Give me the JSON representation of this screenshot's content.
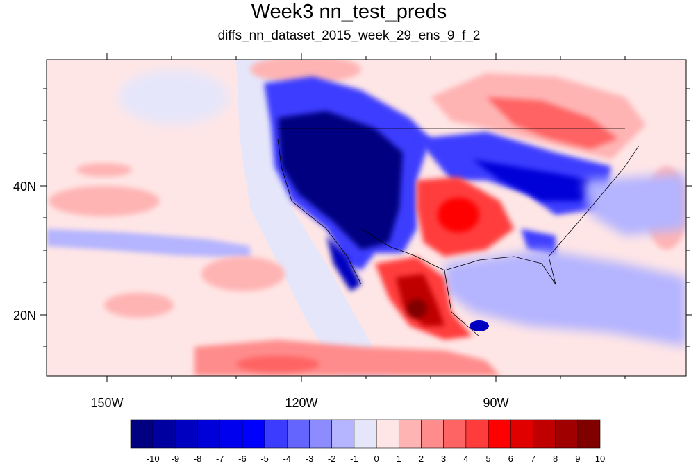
{
  "title": "Week3 nn_test_preds",
  "subtitle": "diffs_nn_dataset_2015_week_29_ens_9_f_2",
  "axes": {
    "lon_labels": [
      "150W",
      "120W",
      "90W"
    ],
    "lat_labels": [
      "40N",
      "20N"
    ]
  },
  "colorbar": {
    "labels": [
      "-10",
      "-9",
      "-8",
      "-7",
      "-6",
      "-5",
      "-4",
      "-3",
      "-2",
      "-1",
      "0",
      "1",
      "2",
      "3",
      "4",
      "5",
      "6",
      "7",
      "8",
      "9",
      "10"
    ],
    "colors": [
      "#000080",
      "#0000a0",
      "#0000c0",
      "#0000d8",
      "#0000ee",
      "#0000ff",
      "#3c3cff",
      "#6464ff",
      "#8c8cff",
      "#b4b4ff",
      "#e6e6fa",
      "#ffe6e6",
      "#ffb4b4",
      "#ff8c8c",
      "#ff6464",
      "#ff3c3c",
      "#ff0000",
      "#e00000",
      "#c00000",
      "#a00000",
      "#800000"
    ]
  }
}
